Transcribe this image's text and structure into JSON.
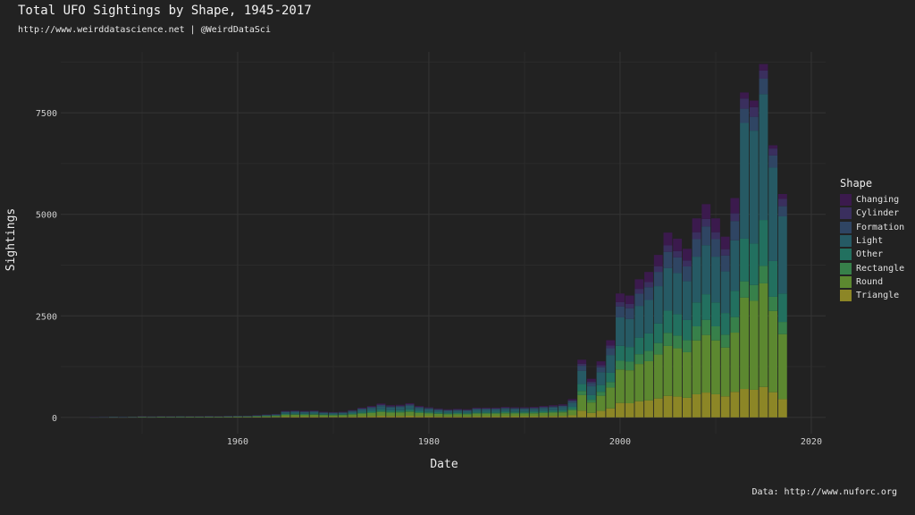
{
  "title": "Total UFO Sightings by Shape, 1945-2017",
  "subtitle": "http://www.weirddatascience.net | @WeirdDataSci",
  "caption": "Data: http://www.nuforc.org",
  "colors": {
    "Changing": "#3b1a4d",
    "Cylinder": "#3a2f5e",
    "Formation": "#2f4563",
    "Light": "#265a64",
    "Other": "#22705f",
    "Rectangle": "#37804a",
    "Round": "#5c8830",
    "Triangle": "#8c8626"
  },
  "chart_data": {
    "type": "bar",
    "stacked": true,
    "title": "Total UFO Sightings by Shape, 1945-2017",
    "xlabel": "Date",
    "ylabel": "Sightings",
    "xlim": [
      1941.5,
      2021.5
    ],
    "ylim": [
      -400,
      9000
    ],
    "xticks": [
      1960,
      1980,
      2000,
      2020
    ],
    "yticks": [
      0,
      2500,
      5000,
      7500
    ],
    "grid": true,
    "legend_title": "Shape",
    "legend_position": "right",
    "categories": [
      1945,
      1946,
      1947,
      1948,
      1949,
      1950,
      1951,
      1952,
      1953,
      1954,
      1955,
      1956,
      1957,
      1958,
      1959,
      1960,
      1961,
      1962,
      1963,
      1964,
      1965,
      1966,
      1967,
      1968,
      1969,
      1970,
      1971,
      1972,
      1973,
      1974,
      1975,
      1976,
      1977,
      1978,
      1979,
      1980,
      1981,
      1982,
      1983,
      1984,
      1985,
      1986,
      1987,
      1988,
      1989,
      1990,
      1991,
      1992,
      1993,
      1994,
      1995,
      1996,
      1997,
      1998,
      1999,
      2000,
      2001,
      2002,
      2003,
      2004,
      2005,
      2006,
      2007,
      2008,
      2009,
      2010,
      2011,
      2012,
      2013,
      2014,
      2015,
      2016,
      2017
    ],
    "totals": [
      5,
      8,
      15,
      10,
      18,
      25,
      22,
      28,
      26,
      24,
      30,
      28,
      32,
      30,
      35,
      40,
      42,
      55,
      70,
      85,
      160,
      170,
      160,
      170,
      140,
      130,
      140,
      180,
      240,
      280,
      340,
      300,
      310,
      350,
      280,
      250,
      220,
      200,
      210,
      200,
      240,
      240,
      240,
      260,
      250,
      250,
      260,
      280,
      300,
      320,
      450,
      1420,
      950,
      1380,
      1900,
      3050,
      3000,
      3400,
      3580,
      4000,
      4550,
      4400,
      4150,
      4900,
      5250,
      4900,
      4450,
      5400,
      8000,
      7800,
      8700,
      6700,
      5500
    ],
    "series": [
      {
        "name": "Triangle",
        "values": [
          0,
          0,
          1,
          1,
          2,
          3,
          2,
          3,
          3,
          3,
          4,
          3,
          4,
          4,
          4,
          5,
          5,
          6,
          8,
          9,
          18,
          20,
          18,
          20,
          16,
          15,
          16,
          21,
          28,
          32,
          39,
          35,
          36,
          40,
          32,
          29,
          25,
          23,
          24,
          23,
          28,
          28,
          28,
          30,
          29,
          29,
          30,
          32,
          35,
          37,
          52,
          165,
          110,
          160,
          221,
          355,
          349,
          396,
          417,
          466,
          530,
          512,
          483,
          570,
          611,
          570,
          518,
          628,
          700,
          680,
          750,
          620,
          450
        ]
      },
      {
        "name": "Round",
        "values": [
          1,
          2,
          4,
          3,
          5,
          7,
          6,
          8,
          7,
          7,
          8,
          8,
          9,
          8,
          10,
          11,
          11,
          15,
          19,
          23,
          43,
          46,
          43,
          46,
          38,
          35,
          38,
          49,
          65,
          76,
          92,
          81,
          84,
          95,
          76,
          68,
          60,
          54,
          57,
          54,
          65,
          65,
          65,
          70,
          68,
          68,
          70,
          76,
          81,
          87,
          122,
          384,
          257,
          373,
          514,
          824,
          811,
          919,
          967,
          1081,
          1229,
          1189,
          1121,
          1324,
          1418,
          1324,
          1202,
          1459,
          2250,
          2190,
          2550,
          2000,
          1600
        ]
      },
      {
        "name": "Rectangle",
        "values": [
          0,
          1,
          1,
          1,
          1,
          2,
          2,
          2,
          2,
          2,
          2,
          2,
          2,
          2,
          3,
          3,
          3,
          4,
          5,
          6,
          11,
          12,
          11,
          12,
          10,
          9,
          10,
          13,
          17,
          20,
          24,
          21,
          22,
          25,
          20,
          18,
          16,
          14,
          15,
          14,
          17,
          17,
          17,
          18,
          18,
          18,
          18,
          20,
          21,
          23,
          32,
          101,
          67,
          98,
          135,
          216,
          213,
          241,
          254,
          284,
          323,
          312,
          295,
          348,
          373,
          348,
          316,
          383,
          400,
          390,
          430,
          350,
          300
        ]
      },
      {
        "name": "Other",
        "values": [
          1,
          1,
          2,
          1,
          2,
          3,
          3,
          3,
          3,
          3,
          4,
          3,
          4,
          4,
          4,
          5,
          5,
          7,
          8,
          10,
          19,
          20,
          19,
          20,
          17,
          16,
          17,
          22,
          29,
          34,
          41,
          36,
          37,
          42,
          34,
          30,
          27,
          24,
          25,
          24,
          29,
          29,
          29,
          31,
          30,
          30,
          31,
          34,
          36,
          38,
          54,
          170,
          114,
          166,
          228,
          366,
          360,
          408,
          430,
          480,
          546,
          528,
          498,
          588,
          630,
          588,
          534,
          648,
          1050,
          1020,
          1130,
          880,
          700
        ]
      },
      {
        "name": "Light",
        "values": [
          1,
          2,
          4,
          2,
          4,
          6,
          5,
          7,
          6,
          6,
          7,
          7,
          8,
          7,
          8,
          9,
          10,
          13,
          16,
          20,
          37,
          39,
          37,
          39,
          32,
          30,
          32,
          41,
          55,
          64,
          78,
          69,
          71,
          81,
          64,
          58,
          51,
          46,
          48,
          46,
          55,
          55,
          55,
          60,
          58,
          58,
          60,
          64,
          69,
          74,
          104,
          327,
          218,
          317,
          437,
          702,
          690,
          782,
          823,
          920,
          1047,
          1012,
          955,
          1127,
          1208,
          1127,
          1024,
          1242,
          2850,
          2780,
          3100,
          2300,
          1900
        ]
      },
      {
        "name": "Formation",
        "values": [
          0,
          1,
          1,
          1,
          2,
          2,
          2,
          2,
          2,
          2,
          3,
          2,
          3,
          3,
          3,
          4,
          4,
          5,
          6,
          7,
          14,
          15,
          14,
          15,
          12,
          12,
          12,
          16,
          21,
          25,
          30,
          26,
          27,
          31,
          25,
          22,
          19,
          17,
          18,
          17,
          21,
          21,
          21,
          23,
          22,
          22,
          23,
          25,
          26,
          28,
          40,
          125,
          84,
          121,
          167,
          268,
          264,
          299,
          315,
          352,
          400,
          387,
          365,
          431,
          462,
          431,
          392,
          475,
          350,
          340,
          380,
          300,
          250
        ]
      },
      {
        "name": "Cylinder",
        "values": [
          1,
          1,
          1,
          1,
          1,
          1,
          1,
          1,
          1,
          1,
          1,
          1,
          1,
          1,
          1,
          1,
          1,
          2,
          3,
          3,
          6,
          6,
          6,
          6,
          5,
          5,
          5,
          6,
          9,
          10,
          12,
          11,
          11,
          13,
          10,
          9,
          8,
          7,
          7,
          7,
          9,
          9,
          9,
          9,
          9,
          9,
          9,
          10,
          11,
          11,
          16,
          50,
          33,
          48,
          67,
          107,
          105,
          119,
          125,
          140,
          159,
          154,
          145,
          172,
          184,
          172,
          156,
          189,
          250,
          240,
          200,
          170,
          180
        ]
      },
      {
        "name": "Changing",
        "values": [
          1,
          0,
          1,
          0,
          1,
          1,
          1,
          2,
          2,
          0,
          1,
          2,
          1,
          1,
          2,
          2,
          3,
          3,
          5,
          7,
          12,
          12,
          12,
          12,
          10,
          8,
          10,
          12,
          16,
          19,
          24,
          21,
          22,
          23,
          19,
          16,
          14,
          15,
          16,
          16,
          16,
          16,
          16,
          19,
          16,
          16,
          19,
          19,
          21,
          22,
          30,
          98,
          67,
          97,
          131,
          212,
          208,
          236,
          249,
          277,
          316,
          306,
          288,
          340,
          364,
          340,
          308,
          376,
          150,
          160,
          160,
          80,
          120
        ]
      }
    ]
  }
}
